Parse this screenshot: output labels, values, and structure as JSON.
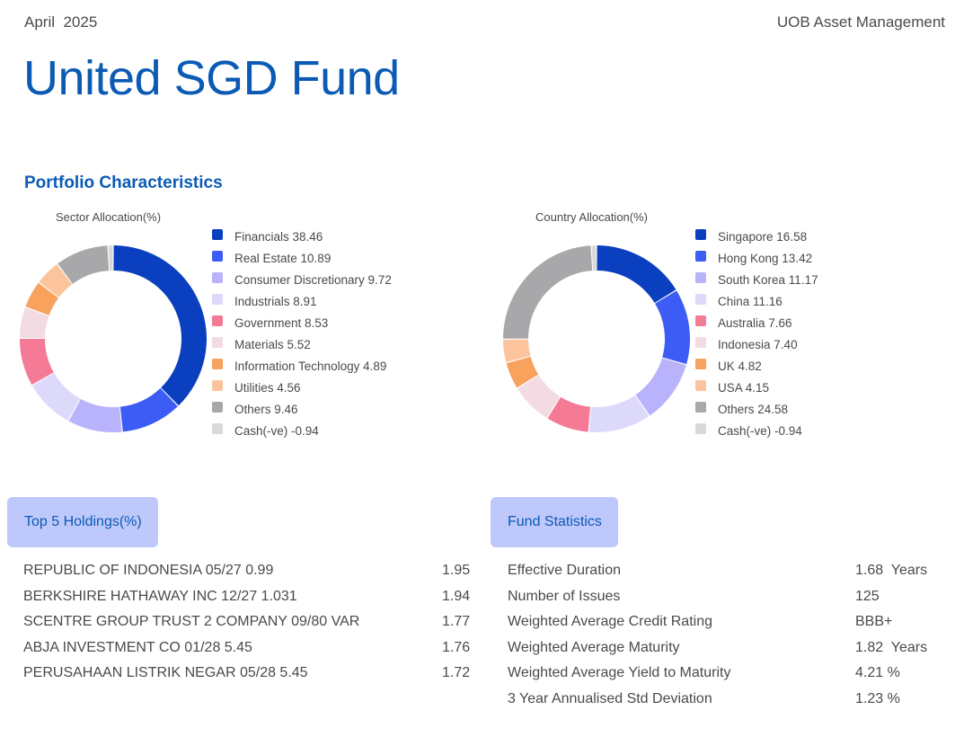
{
  "header": {
    "date": "April  2025",
    "company": "UOB Asset Management",
    "title": "United SGD Fund"
  },
  "section_title": "Portfolio Characteristics",
  "chart_data": [
    {
      "type": "donut",
      "title": "Sector Allocation(%)",
      "series": [
        {
          "label": "Financials 38.46",
          "value": 38.46,
          "color": "#0a3fbf"
        },
        {
          "label": "Real Estate 10.89",
          "value": 10.89,
          "color": "#3d5cf5"
        },
        {
          "label": "Consumer Discretionary 9.72",
          "value": 9.72,
          "color": "#b9b3fb"
        },
        {
          "label": "Industrials 8.91",
          "value": 8.91,
          "color": "#dcd9fb"
        },
        {
          "label": "Government 8.53",
          "value": 8.53,
          "color": "#f47a96"
        },
        {
          "label": "Materials 5.52",
          "value": 5.52,
          "color": "#f3dbe3"
        },
        {
          "label": "Information Technology 4.89",
          "value": 4.89,
          "color": "#f8a25e"
        },
        {
          "label": "Utilities 4.56",
          "value": 4.56,
          "color": "#fbc49d"
        },
        {
          "label": "Others 9.46",
          "value": 9.46,
          "color": "#a8a8aa"
        },
        {
          "label": "Cash(-ve) -0.94",
          "value": -0.94,
          "color": "#d9d9d9"
        }
      ]
    },
    {
      "type": "donut",
      "title": "Country Allocation(%)",
      "series": [
        {
          "label": "Singapore 16.58",
          "value": 16.58,
          "color": "#0a3fbf"
        },
        {
          "label": "Hong Kong 13.42",
          "value": 13.42,
          "color": "#3d5cf5"
        },
        {
          "label": "South Korea 11.17",
          "value": 11.17,
          "color": "#b9b3fb"
        },
        {
          "label": "China 11.16",
          "value": 11.16,
          "color": "#dcd9fb"
        },
        {
          "label": "Australia 7.66",
          "value": 7.66,
          "color": "#f47a96"
        },
        {
          "label": "Indonesia 7.40",
          "value": 7.4,
          "color": "#f3dbe3"
        },
        {
          "label": "UK 4.82",
          "value": 4.82,
          "color": "#f8a25e"
        },
        {
          "label": "USA 4.15",
          "value": 4.15,
          "color": "#fbc49d"
        },
        {
          "label": "Others 24.58",
          "value": 24.58,
          "color": "#a8a8aa"
        },
        {
          "label": "Cash(-ve) -0.94",
          "value": -0.94,
          "color": "#d9d9d9"
        }
      ]
    }
  ],
  "holdings": {
    "title": "Top 5 Holdings(%)",
    "rows": [
      {
        "name": "REPUBLIC OF INDONESIA 05/27 0.99",
        "value": "1.95"
      },
      {
        "name": "BERKSHIRE HATHAWAY INC 12/27 1.031",
        "value": "1.94"
      },
      {
        "name": "SCENTRE GROUP TRUST 2 COMPANY 09/80 VAR",
        "value": "1.77"
      },
      {
        "name": "ABJA INVESTMENT CO 01/28 5.45",
        "value": "1.76"
      },
      {
        "name": "PERUSAHAAN LISTRIK NEGAR 05/28 5.45",
        "value": "1.72"
      }
    ]
  },
  "stats": {
    "title": "Fund Statistics",
    "rows": [
      {
        "name": "Effective Duration",
        "value": "1.68  Years"
      },
      {
        "name": "Number of Issues",
        "value": "125"
      },
      {
        "name": "Weighted Average Credit Rating",
        "value": "BBB+"
      },
      {
        "name": "Weighted Average Maturity",
        "value": "1.82  Years"
      },
      {
        "name": "Weighted Average Yield to Maturity",
        "value": "4.21 %"
      },
      {
        "name": "3 Year Annualised Std Deviation",
        "value": "1.23 %"
      }
    ]
  }
}
